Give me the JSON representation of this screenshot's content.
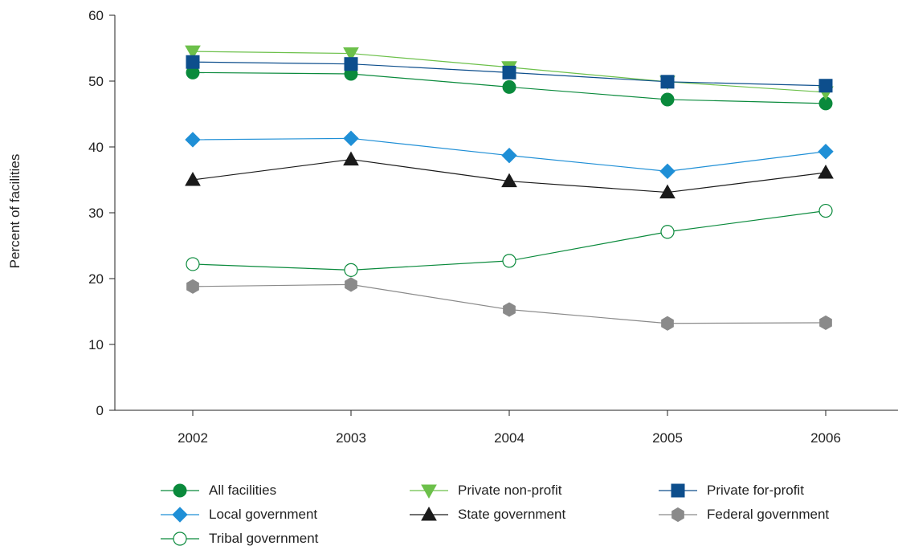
{
  "chart_data": {
    "type": "line",
    "title": "",
    "xlabel": "",
    "ylabel": "Percent of facilities",
    "x": [
      "2002",
      "2003",
      "2004",
      "2005",
      "2006"
    ],
    "ylim": [
      0,
      60
    ],
    "yticks": [
      0,
      10,
      20,
      30,
      40,
      50,
      60
    ],
    "grid": false,
    "legend_position": "bottom",
    "series": [
      {
        "name": "All facilities",
        "values": [
          51.3,
          51.1,
          49.1,
          47.2,
          46.6
        ],
        "color": "#0a8a3c",
        "marker": "circle",
        "filled": true
      },
      {
        "name": "Private non-profit",
        "values": [
          54.5,
          54.2,
          52.1,
          49.9,
          48.3
        ],
        "color": "#6cc04a",
        "marker": "triangle-down",
        "filled": true
      },
      {
        "name": "Private for-profit",
        "values": [
          52.9,
          52.6,
          51.3,
          49.9,
          49.3
        ],
        "color": "#0d4e8c",
        "marker": "square",
        "filled": true
      },
      {
        "name": "Local government",
        "values": [
          41.1,
          41.3,
          38.7,
          36.3,
          39.3
        ],
        "color": "#1f8fd6",
        "marker": "diamond",
        "filled": true
      },
      {
        "name": "State government",
        "values": [
          35.0,
          38.1,
          34.8,
          33.1,
          36.1
        ],
        "color": "#1a1a1a",
        "marker": "triangle-up",
        "filled": true
      },
      {
        "name": "Federal government",
        "values": [
          18.8,
          19.1,
          15.3,
          13.2,
          13.3
        ],
        "color": "#8a8a8a",
        "marker": "hexagon",
        "filled": true
      },
      {
        "name": "Tribal government",
        "values": [
          22.2,
          21.3,
          22.7,
          27.1,
          30.3
        ],
        "color": "#0a8a3c",
        "marker": "circle",
        "filled": false
      }
    ]
  }
}
